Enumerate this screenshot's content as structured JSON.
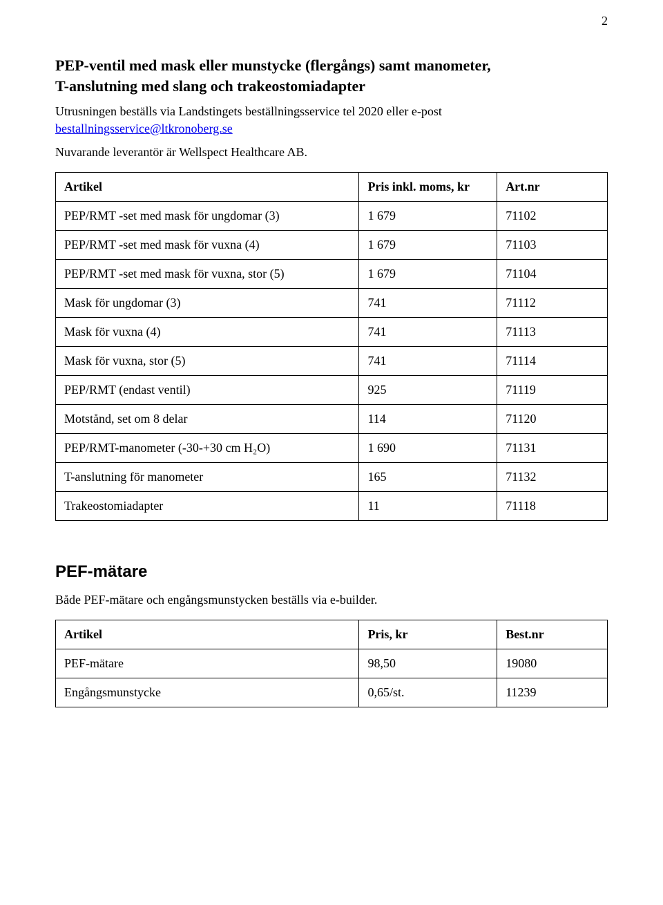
{
  "page_number": "2",
  "section1": {
    "title_line1": "PEP-ventil med mask eller munstycke (flergångs) samt manometer,",
    "title_line2": "T-anslutning med slang och trakeostomiadapter",
    "intro": "Utrusningen beställs via Landstingets beställningsservice tel 2020 eller e-post",
    "email": "bestallningsservice@ltkronoberg.se",
    "supplier": "Nuvarande leverantör är Wellspect Healthcare AB.",
    "table": {
      "headers": [
        "Artikel",
        "Pris inkl. moms, kr",
        "Art.nr"
      ],
      "rows": [
        {
          "article": "PEP/RMT -set med mask för ungdomar (3)",
          "price": "1 679",
          "art": "71102"
        },
        {
          "article": "PEP/RMT -set med mask för vuxna (4)",
          "price": "1 679",
          "art": "71103"
        },
        {
          "article": "PEP/RMT -set med mask för vuxna, stor (5)",
          "price": "1 679",
          "art": "71104"
        },
        {
          "article": "Mask för ungdomar (3)",
          "price": "741",
          "art": "71112"
        },
        {
          "article": "Mask för vuxna  (4)",
          "price": "741",
          "art": "71113"
        },
        {
          "article": "Mask för vuxna, stor (5)",
          "price": "741",
          "art": "71114"
        },
        {
          "article": "PEP/RMT (endast ventil)",
          "price": "925",
          "art": "71119"
        },
        {
          "article": "Motstånd, set om 8 delar",
          "price": "114",
          "art": "71120"
        },
        {
          "article": "PEP/RMT-manometer (-30-+30 cm H₂O)",
          "price": "1 690",
          "art": "71131"
        },
        {
          "article": "T-anslutning för manometer",
          "price": "165",
          "art": "71132"
        },
        {
          "article": "Trakeostomiadapter",
          "price": "11",
          "art": "71118"
        }
      ]
    }
  },
  "section2": {
    "title": "PEF-mätare",
    "intro": "Både PEF-mätare och engångsmunstycken beställs via e-builder.",
    "table": {
      "headers": [
        "Artikel",
        "Pris, kr",
        "Best.nr"
      ],
      "rows": [
        {
          "article": "PEF-mätare",
          "price": "98,50",
          "art": "19080"
        },
        {
          "article": "Engångsmunstycke",
          "price": "0,65/st.",
          "art": "11239"
        }
      ]
    }
  },
  "style": {
    "text_color": "#000000",
    "link_color": "#0000ee",
    "background_color": "#ffffff",
    "border_color": "#000000",
    "body_font": "Times New Roman",
    "pef_title_font": "Arial",
    "body_fontsize_pt": 14,
    "section_title_fontsize_pt": 17,
    "pef_title_fontsize_pt": 18,
    "col_widths_pct": [
      55,
      25,
      20
    ]
  }
}
